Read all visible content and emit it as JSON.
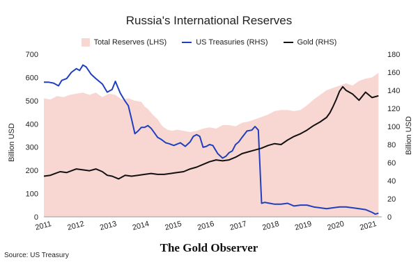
{
  "chart_data": {
    "type": "line",
    "title": "Russia's International Reserves",
    "ylabel_left": "Billion USD",
    "ylabel_right": "Billion USD",
    "ylim_left": [
      0,
      700
    ],
    "ylim_right": [
      0,
      180
    ],
    "yticks_left": [
      "0",
      "100",
      "200",
      "300",
      "400",
      "500",
      "600",
      "700"
    ],
    "yticks_right": [
      "0",
      "20",
      "40",
      "60",
      "80",
      "100",
      "120",
      "140",
      "160",
      "180"
    ],
    "xlim": [
      2011,
      2021.4
    ],
    "xticks": [
      "2011",
      "2012",
      "2013",
      "2014",
      "2015",
      "2016",
      "2017",
      "2018",
      "2019",
      "2020",
      "2021"
    ],
    "grid": false,
    "legend_position": "top",
    "series": [
      {
        "name": "Total Reserves (LHS)",
        "type": "area",
        "axis": "left",
        "color": "#f8d7d2",
        "x": [
          2011.0,
          2011.2,
          2011.4,
          2011.6,
          2011.8,
          2012.0,
          2012.2,
          2012.4,
          2012.6,
          2012.8,
          2013.0,
          2013.2,
          2013.4,
          2013.6,
          2013.8,
          2014.0,
          2014.1,
          2014.2,
          2014.35,
          2014.5,
          2014.65,
          2014.8,
          2014.95,
          2015.1,
          2015.3,
          2015.5,
          2015.7,
          2015.9,
          2016.1,
          2016.3,
          2016.5,
          2016.7,
          2016.9,
          2017.1,
          2017.3,
          2017.5,
          2017.7,
          2017.9,
          2018.1,
          2018.3,
          2018.5,
          2018.7,
          2018.9,
          2019.1,
          2019.3,
          2019.5,
          2019.7,
          2019.9,
          2020.1,
          2020.2,
          2020.3,
          2020.5,
          2020.7,
          2020.9,
          2021.1,
          2021.3
        ],
        "values": [
          510,
          505,
          520,
          515,
          525,
          530,
          535,
          525,
          535,
          515,
          530,
          525,
          505,
          510,
          500,
          495,
          475,
          465,
          440,
          420,
          390,
          375,
          370,
          375,
          370,
          365,
          370,
          380,
          385,
          380,
          395,
          395,
          390,
          405,
          410,
          420,
          430,
          440,
          455,
          460,
          460,
          455,
          460,
          480,
          505,
          525,
          545,
          555,
          565,
          570,
          575,
          565,
          585,
          595,
          600,
          620
        ]
      },
      {
        "name": "US Treasuries (RHS)",
        "type": "line",
        "axis": "right",
        "color": "#1f3fbf",
        "x": [
          2011.0,
          2011.15,
          2011.3,
          2011.45,
          2011.55,
          2011.7,
          2011.85,
          2012.0,
          2012.1,
          2012.2,
          2012.3,
          2012.45,
          2012.6,
          2012.8,
          2012.95,
          2013.1,
          2013.2,
          2013.35,
          2013.5,
          2013.6,
          2013.7,
          2013.8,
          2013.9,
          2014.0,
          2014.1,
          2014.2,
          2014.3,
          2014.4,
          2014.5,
          2014.6,
          2014.75,
          2014.85,
          2015.0,
          2015.2,
          2015.35,
          2015.5,
          2015.6,
          2015.7,
          2015.8,
          2015.9,
          2016.0,
          2016.1,
          2016.2,
          2016.35,
          2016.5,
          2016.6,
          2016.7,
          2016.8,
          2016.9,
          2017.0,
          2017.1,
          2017.25,
          2017.4,
          2017.5,
          2017.6,
          2017.7,
          2017.8,
          2017.95,
          2018.1,
          2018.3,
          2018.5,
          2018.7,
          2018.9,
          2019.1,
          2019.3,
          2019.5,
          2019.7,
          2019.9,
          2020.1,
          2020.3,
          2020.5,
          2020.7,
          2020.9,
          2021.1,
          2021.2,
          2021.3
        ],
        "values": [
          149,
          149,
          148,
          145,
          151,
          153,
          160,
          164,
          162,
          168,
          166,
          158,
          153,
          147,
          138,
          141,
          150,
          137,
          128,
          123,
          108,
          92,
          95,
          99,
          99,
          101,
          98,
          93,
          88,
          86,
          82,
          81,
          79,
          82,
          78,
          83,
          89,
          91,
          89,
          77,
          78,
          80,
          79,
          70,
          65,
          67,
          71,
          73,
          80,
          83,
          88,
          95,
          96,
          100,
          96,
          15,
          16,
          15,
          14,
          14,
          15,
          12,
          13,
          13,
          11,
          10,
          9,
          10,
          11,
          11,
          10,
          9,
          8,
          5,
          3,
          4
        ]
      },
      {
        "name": "Gold (RHS)",
        "type": "line",
        "axis": "right",
        "color": "#111111",
        "x": [
          2011.0,
          2011.2,
          2011.35,
          2011.5,
          2011.7,
          2011.85,
          2012.0,
          2012.2,
          2012.4,
          2012.6,
          2012.8,
          2012.95,
          2013.1,
          2013.3,
          2013.5,
          2013.7,
          2013.9,
          2014.1,
          2014.3,
          2014.5,
          2014.7,
          2014.9,
          2015.1,
          2015.3,
          2015.5,
          2015.7,
          2015.9,
          2016.1,
          2016.3,
          2016.5,
          2016.7,
          2016.9,
          2017.1,
          2017.3,
          2017.5,
          2017.7,
          2017.9,
          2018.1,
          2018.3,
          2018.5,
          2018.7,
          2018.9,
          2019.1,
          2019.3,
          2019.5,
          2019.7,
          2019.8,
          2019.9,
          2020.0,
          2020.1,
          2020.2,
          2020.3,
          2020.5,
          2020.7,
          2020.9,
          2021.1,
          2021.2,
          2021.3
        ],
        "values": [
          45,
          46,
          48,
          50,
          49,
          51,
          53,
          52,
          51,
          53,
          50,
          46,
          45,
          42,
          46,
          45,
          46,
          47,
          48,
          47,
          47,
          48,
          49,
          50,
          53,
          55,
          58,
          61,
          63,
          62,
          63,
          66,
          70,
          72,
          74,
          76,
          79,
          81,
          80,
          85,
          89,
          92,
          96,
          101,
          105,
          110,
          115,
          122,
          130,
          139,
          144,
          140,
          136,
          129,
          138,
          132,
          133,
          134
        ]
      }
    ]
  },
  "footer": {
    "brand": "The Gold Observer",
    "source": "Source: US Treasury"
  }
}
